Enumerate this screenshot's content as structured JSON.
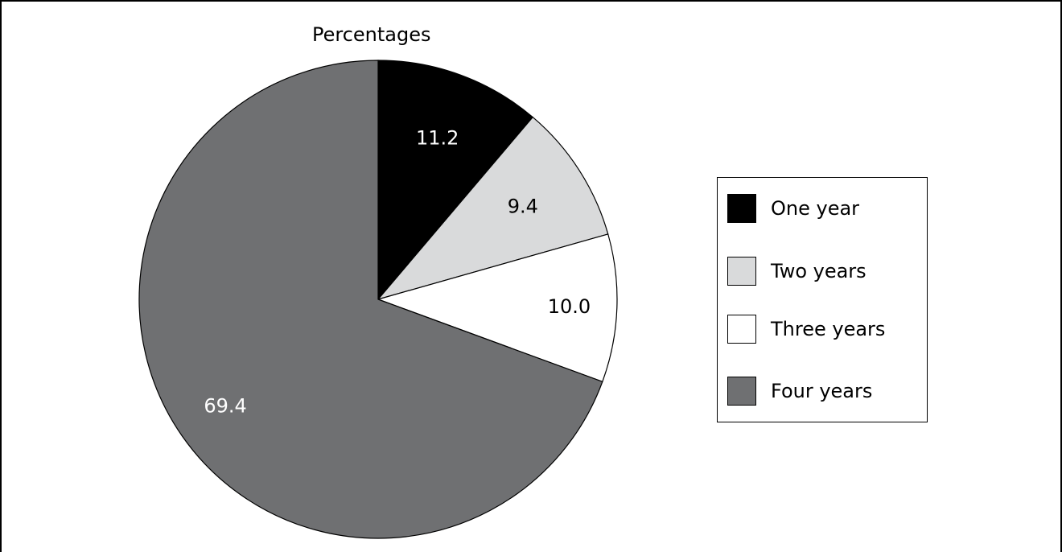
{
  "chart_data": {
    "type": "pie",
    "title": "Percentages",
    "categories": [
      "One year",
      "Two years",
      "Three years",
      "Four years"
    ],
    "values": [
      11.2,
      9.4,
      10.0,
      69.4
    ],
    "value_labels": [
      "11.2",
      "9.4",
      "10.0",
      "69.4"
    ],
    "colors": [
      "#000000",
      "#d9dadb",
      "#ffffff",
      "#6f7072"
    ],
    "label_colors": [
      "#ffffff",
      "#000000",
      "#000000",
      "#ffffff"
    ],
    "legend": "right",
    "start_angle": "12 o'clock",
    "direction": "clockwise"
  }
}
